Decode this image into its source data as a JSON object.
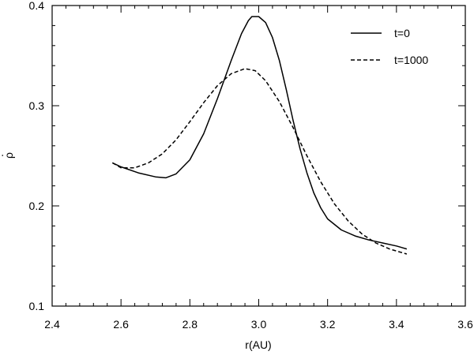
{
  "chart_data": {
    "type": "line",
    "title": "",
    "xlabel": "r(AU)",
    "ylabel": "ρ",
    "ylabel_accent": "·",
    "xlim": [
      2.4,
      3.6
    ],
    "ylim": [
      0.1,
      0.4
    ],
    "xticks": [
      2.4,
      2.6,
      2.8,
      3.0,
      3.2,
      3.4,
      3.6
    ],
    "xtick_labels": [
      "2.4",
      "2.6",
      "2.8",
      "3.0",
      "3.2",
      "3.4",
      "3.6"
    ],
    "yticks": [
      0.1,
      0.2,
      0.3,
      0.4
    ],
    "ytick_labels": [
      "0.1",
      "0.2",
      "0.3",
      "0.4"
    ],
    "grid": false,
    "legend_position": "top-right",
    "series": [
      {
        "name": "t=0",
        "style": "solid",
        "color": "#000000",
        "x": [
          2.575,
          2.6,
          2.65,
          2.7,
          2.73,
          2.76,
          2.8,
          2.84,
          2.88,
          2.92,
          2.95,
          2.97,
          2.98,
          3.0,
          3.02,
          3.04,
          3.06,
          3.08,
          3.1,
          3.12,
          3.14,
          3.16,
          3.18,
          3.2,
          3.24,
          3.28,
          3.32,
          3.36,
          3.4,
          3.43
        ],
        "y": [
          0.243,
          0.239,
          0.233,
          0.229,
          0.228,
          0.232,
          0.246,
          0.272,
          0.307,
          0.345,
          0.372,
          0.385,
          0.389,
          0.389,
          0.383,
          0.368,
          0.345,
          0.316,
          0.285,
          0.257,
          0.233,
          0.213,
          0.198,
          0.187,
          0.176,
          0.17,
          0.166,
          0.163,
          0.16,
          0.157
        ]
      },
      {
        "name": "t=1000",
        "style": "dashed",
        "color": "#000000",
        "x": [
          2.575,
          2.6,
          2.64,
          2.68,
          2.72,
          2.76,
          2.8,
          2.84,
          2.88,
          2.92,
          2.96,
          2.99,
          3.02,
          3.06,
          3.1,
          3.14,
          3.18,
          3.22,
          3.26,
          3.3,
          3.34,
          3.38,
          3.43
        ],
        "y": [
          0.243,
          0.238,
          0.238,
          0.243,
          0.252,
          0.266,
          0.284,
          0.303,
          0.32,
          0.332,
          0.337,
          0.335,
          0.325,
          0.304,
          0.278,
          0.25,
          0.224,
          0.202,
          0.185,
          0.172,
          0.163,
          0.157,
          0.152
        ]
      }
    ]
  }
}
